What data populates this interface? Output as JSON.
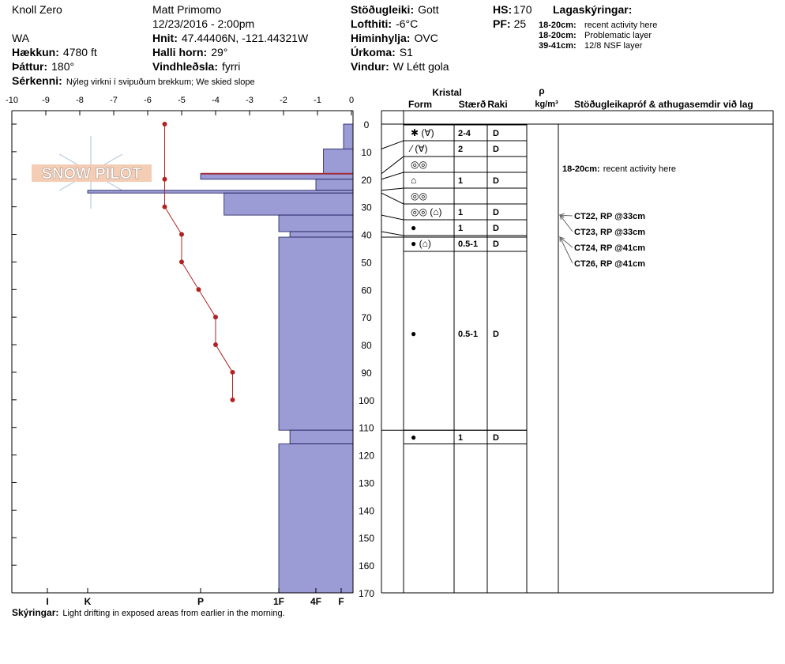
{
  "header": {
    "location": "Knoll Zero",
    "observer": "Matt Primomo",
    "datetime": "12/23/2016 - 2:00pm",
    "state": "WA",
    "elevation_label": "Hækkun:",
    "elevation": "4780 ft",
    "aspect_label": "Þáttur:",
    "aspect": "180°",
    "features_label": "Sérkenni:",
    "features": "Nýleg virkni í svipuðum brekkum; We skied slope",
    "coords_label": "Hnit:",
    "coords": "47.44406N, -121.44321W",
    "slope_label": "Halli horn:",
    "slope": "29°",
    "wind_loading_label": "Vindhleðsla:",
    "wind_loading": "fyrri",
    "stability_label": "Stöðugleiki:",
    "stability": "Gott",
    "air_temp_label": "Lofthiti:",
    "air_temp": "-6°C",
    "sky_label": "Himinhylja:",
    "sky": "OVC",
    "precip_label": "Úrkoma:",
    "precip": "S1",
    "wind_label": "Vindur:",
    "wind": "W Létt gola",
    "hs_label": "HS:",
    "hs": "170",
    "pf_label": "PF:",
    "pf": "25",
    "layer_notes_title": "Lagaskýringar:",
    "layer_notes": [
      {
        "depth": "18-20cm:",
        "text": "recent activity here"
      },
      {
        "depth": "18-20cm:",
        "text": "Problematic layer"
      },
      {
        "depth": "39-41cm:",
        "text": "12/8 NSF layer"
      }
    ],
    "logo": "SNOW PILOT"
  },
  "chart_data": {
    "type": "snow_profile",
    "ylim": [
      0,
      170
    ],
    "yticks": [
      0,
      10,
      20,
      30,
      40,
      50,
      60,
      70,
      80,
      90,
      100,
      110,
      120,
      130,
      140,
      150,
      160,
      170
    ],
    "temperature": {
      "xlim": [
        -10,
        0
      ],
      "xticks": [
        -10,
        -9,
        -8,
        -7,
        -6,
        -5,
        -4,
        -3,
        -2,
        -1,
        0
      ],
      "depth": [
        0,
        20,
        30,
        40,
        50,
        60,
        70,
        80,
        90,
        100
      ],
      "values": [
        -5.5,
        -5.5,
        -5.5,
        -5,
        -5,
        -4.5,
        -4,
        -4,
        -3.5,
        -3.5
      ],
      "color": "#b22222"
    },
    "hardness_ticks": [
      {
        "value": 6,
        "label": "I"
      },
      {
        "value": 5,
        "label": "K"
      },
      {
        "value": 4,
        "label": "P"
      },
      {
        "value": 3,
        "label": "1F"
      },
      {
        "value": 2,
        "label": "4F"
      },
      {
        "value": 1,
        "label": "F"
      }
    ],
    "bar_color": "#9b9bd6",
    "columns": {
      "crystal": "Kristal",
      "form": "Form",
      "size": "Stærð",
      "moisture": "Raki",
      "density": "ρ",
      "density_unit": "kg/m³",
      "comments": "Stöðugleikapróf & athugasemdir við lag"
    },
    "layers": [
      {
        "top": 0,
        "bottom": 9,
        "hardness": 0.8,
        "form": "✱ (∀)",
        "size": "2-4",
        "moisture": "D"
      },
      {
        "top": 9,
        "bottom": 18,
        "hardness": 1.7,
        "form": "⁄ (∀)",
        "size": "2",
        "moisture": "D"
      },
      {
        "top": 18,
        "bottom": 20,
        "hardness": 4,
        "form": "◎◎",
        "highlight_color": "#a0303a",
        "comment_label": "18-20cm:",
        "comment": "recent activity here"
      },
      {
        "top": 20,
        "bottom": 24,
        "hardness": 2,
        "form": "⌂",
        "size": "1",
        "moisture": "D"
      },
      {
        "top": 24,
        "bottom": 25,
        "hardness": 5,
        "form": "◎◎"
      },
      {
        "top": 25,
        "bottom": 33,
        "hardness": 3.7,
        "form": "◎◎ (⌂)",
        "size": "1",
        "moisture": "D"
      },
      {
        "top": 33,
        "bottom": 39,
        "hardness": 3,
        "form": "●",
        "size": "1",
        "moisture": "D"
      },
      {
        "top": 39,
        "bottom": 41,
        "hardness": 2.7,
        "form": "● (⌂)",
        "size": "0.5-1",
        "moisture": "D"
      },
      {
        "top": 41,
        "bottom": 111,
        "hardness": 3,
        "form": "●",
        "size": "0.5-1",
        "moisture": "D"
      },
      {
        "top": 111,
        "bottom": 116,
        "hardness": 2.7,
        "form": "●",
        "size": "1",
        "moisture": "D"
      },
      {
        "top": 116,
        "bottom": 170,
        "hardness": 3
      }
    ],
    "tests": [
      {
        "label": "CT22, RP @33cm",
        "depth": 33
      },
      {
        "label": "CT23, RP @33cm",
        "depth": 33
      },
      {
        "label": "CT24, RP @41cm",
        "depth": 41
      },
      {
        "label": "CT26, RP @41cm",
        "depth": 41
      }
    ],
    "notes_label": "Skýringar:",
    "notes": "Light drifting in exposed areas from earlier in the morning."
  }
}
